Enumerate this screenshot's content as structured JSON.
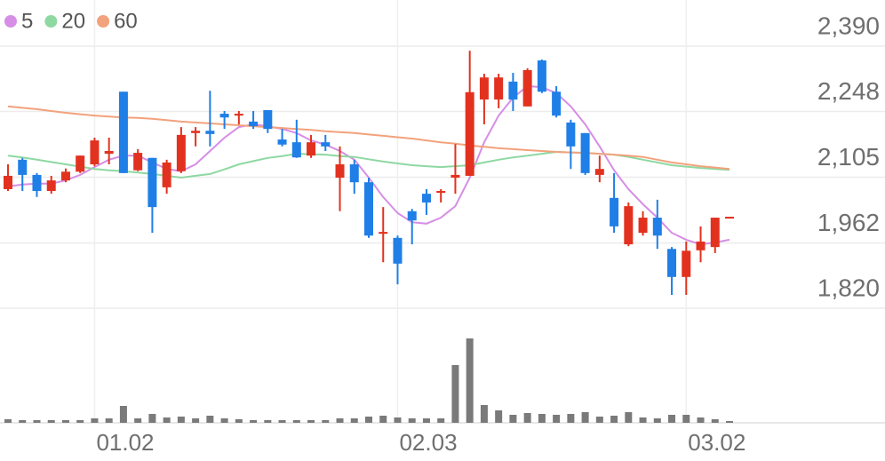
{
  "chart_data": {
    "type": "candlestick",
    "categories": [
      null,
      null,
      null,
      null,
      null,
      null,
      "01.02",
      null,
      null,
      null,
      null,
      null,
      null,
      null,
      null,
      null,
      null,
      null,
      null,
      null,
      null,
      null,
      null,
      null,
      null,
      null,
      null,
      "02.03",
      null,
      null,
      null,
      null,
      null,
      null,
      null,
      null,
      null,
      null,
      null,
      null,
      null,
      null,
      null,
      null,
      null,
      null,
      null,
      "03.02",
      null,
      null,
      null
    ],
    "open": [
      2079,
      2143,
      2110,
      2075,
      2098,
      2117,
      2133,
      2156,
      2291,
      2120,
      2147,
      2083,
      2118,
      2201,
      2206,
      2243,
      2239,
      2226,
      2251,
      2187,
      2181,
      2152,
      2181,
      2104,
      2133,
      2094,
      1982,
      1973,
      2031,
      2069,
      2071,
      2104,
      2108,
      2274,
      2274,
      2313,
      2259,
      2359,
      2291,
      2224,
      2201,
      2110,
      2060,
      1959,
      1984,
      2017,
      1949,
      1888,
      1946,
      1953,
      2015
    ],
    "high": [
      2133,
      2147,
      2114,
      2108,
      2124,
      2152,
      2191,
      2191,
      2291,
      2166,
      2147,
      2143,
      2214,
      2214,
      2293,
      2249,
      2249,
      2249,
      2251,
      2210,
      2230,
      2197,
      2197,
      2172,
      2143,
      2104,
      2040,
      1978,
      2036,
      2079,
      2079,
      2177,
      2380,
      2330,
      2330,
      2332,
      2342,
      2361,
      2303,
      2230,
      2201,
      2152,
      2114,
      2050,
      2031,
      2056,
      1953,
      1965,
      1998,
      2017,
      2019
    ],
    "low": [
      2075,
      2075,
      2062,
      2069,
      2094,
      2114,
      2129,
      2133,
      2114,
      2118,
      1984,
      2069,
      2114,
      2172,
      2172,
      2210,
      2220,
      2210,
      2201,
      2172,
      2147,
      2147,
      2162,
      2031,
      2069,
      1973,
      1920,
      1872,
      1959,
      2023,
      2050,
      2069,
      2108,
      2220,
      2255,
      2249,
      2259,
      2288,
      2235,
      2123,
      2110,
      2094,
      1984,
      1955,
      1978,
      1949,
      1849,
      1849,
      1920,
      1940,
      2015
    ],
    "close": [
      2108,
      2110,
      2075,
      2098,
      2117,
      2152,
      2185,
      2162,
      2114,
      2158,
      2040,
      2137,
      2197,
      2206,
      2199,
      2235,
      2243,
      2216,
      2210,
      2176,
      2148,
      2181,
      2172,
      2133,
      2094,
      1978,
      1986,
      1917,
      2011,
      2050,
      2075,
      2110,
      2290,
      2322,
      2322,
      2274,
      2338,
      2291,
      2239,
      2172,
      2114,
      2123,
      1998,
      2042,
      2017,
      1978,
      1888,
      1945,
      1965,
      2017,
      2019
    ],
    "up_color": "#e2321f",
    "down_color": "#1f7fe6",
    "series": [
      {
        "name": "5",
        "color": "#d68ee6",
        "values": [
          2085,
          2089,
          2091,
          2091,
          2098,
          2110,
          2127,
          2143,
          2152,
          2152,
          2137,
          2123,
          2118,
          2133,
          2162,
          2191,
          2214,
          2220,
          2216,
          2210,
          2201,
          2185,
          2176,
          2162,
          2143,
          2104,
          2062,
          2027,
          2007,
          2004,
          2017,
          2042,
          2104,
          2181,
          2239,
          2278,
          2303,
          2301,
          2288,
          2259,
          2220,
          2172,
          2120,
          2079,
          2046,
          2017,
          1984,
          1969,
          1959,
          1963,
          1969
        ]
      },
      {
        "name": "20",
        "color": "#8ed8a2",
        "values": [
          2152,
          2148,
          2143,
          2138,
          2133,
          2128,
          2123,
          2120,
          2118,
          2115,
          2112,
          2108,
          2104,
          2108,
          2112,
          2122,
          2133,
          2140,
          2147,
          2151,
          2156,
          2155,
          2154,
          2151,
          2149,
          2144,
          2139,
          2135,
          2131,
          2129,
          2127,
          2129,
          2131,
          2137,
          2143,
          2148,
          2152,
          2156,
          2160,
          2159,
          2158,
          2156,
          2154,
          2149,
          2143,
          2137,
          2131,
          2128,
          2125,
          2123,
          2121
        ]
      },
      {
        "name": "60",
        "color": "#f2a27c",
        "values": [
          2259,
          2256,
          2253,
          2249,
          2245,
          2242,
          2239,
          2237,
          2235,
          2234,
          2232,
          2229,
          2226,
          2224,
          2222,
          2220,
          2218,
          2216,
          2214,
          2212,
          2210,
          2208,
          2205,
          2203,
          2201,
          2198,
          2195,
          2192,
          2189,
          2185,
          2181,
          2178,
          2174,
          2171,
          2168,
          2166,
          2164,
          2162,
          2160,
          2159,
          2158,
          2156,
          2154,
          2152,
          2149,
          2143,
          2137,
          2133,
          2129,
          2126,
          2123
        ]
      }
    ],
    "volume": [
      4,
      3,
      3,
      3,
      3,
      3,
      5,
      5,
      19,
      5,
      10,
      6,
      7,
      5,
      8,
      5,
      4,
      3,
      3,
      3,
      3,
      3,
      3,
      5,
      5,
      7,
      8,
      6,
      5,
      5,
      5,
      65,
      95,
      20,
      14,
      9,
      11,
      10,
      9,
      10,
      12,
      7,
      8,
      12,
      6,
      5,
      9,
      9,
      6,
      4,
      2
    ],
    "volume_color": "#7a7a7a",
    "vlim": [
      0,
      100
    ],
    "ylim": [
      1820,
      2390
    ],
    "yticks": [
      {
        "value": 2390,
        "label": "2,390"
      },
      {
        "value": 2248,
        "label": "2,248"
      },
      {
        "value": 2105,
        "label": "2,105"
      },
      {
        "value": 1962,
        "label": "1,962"
      },
      {
        "value": 1820,
        "label": "1,820"
      }
    ],
    "grid": true
  }
}
